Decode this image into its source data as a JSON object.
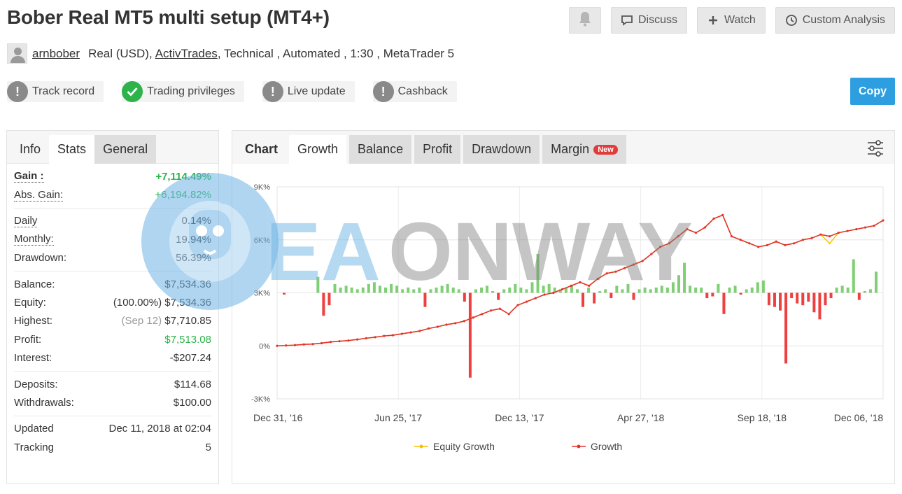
{
  "header": {
    "title": "Bober Real MT5 multi setup (MT4+)",
    "discuss_label": "Discuss",
    "watch_label": "Watch",
    "custom_analysis_label": "Custom Analysis"
  },
  "owner": {
    "username": "arnbober",
    "account_type": "Real (USD),",
    "broker": "ActivTrades",
    "details": ", Technical , Automated , 1:30 , MetaTrader 5"
  },
  "badges": [
    {
      "label": "Track record",
      "status": "warning"
    },
    {
      "label": "Trading privileges",
      "status": "ok"
    },
    {
      "label": "Live update",
      "status": "warning"
    },
    {
      "label": "Cashback",
      "status": "warning"
    }
  ],
  "copy_label": "Copy",
  "stats_tabs": [
    "Info",
    "Stats",
    "General"
  ],
  "stats": {
    "gain_label": "Gain :",
    "gain": "+7,114.49%",
    "abs_gain_label": "Abs. Gain:",
    "abs_gain": "+6,194.82%",
    "daily_label": "Daily",
    "daily": "0.14%",
    "monthly_label": "Monthly:",
    "monthly": "19.94%",
    "drawdown_label": "Drawdown:",
    "drawdown": "56.39%",
    "balance_label": "Balance:",
    "balance": "$7,534.36",
    "equity_label": "Equity:",
    "equity_pct": "(100.00%)",
    "equity": "$7,534.36",
    "highest_label": "Highest:",
    "highest_date": "(Sep 12)",
    "highest": "$7,710.85",
    "profit_label": "Profit:",
    "profit": "$7,513.08",
    "interest_label": "Interest:",
    "interest": "-$207.24",
    "deposits_label": "Deposits:",
    "deposits": "$114.68",
    "withdrawals_label": "Withdrawals:",
    "withdrawals": "$100.00",
    "updated_label": "Updated",
    "updated": "Dec 11, 2018 at 02:04",
    "tracking_label": "Tracking",
    "tracking": "5"
  },
  "chart_tabs": {
    "label": "Chart",
    "items": [
      "Growth",
      "Balance",
      "Profit",
      "Drawdown",
      "Margin"
    ],
    "new_badge": "New"
  },
  "watermark": "EAONWAY",
  "colors": {
    "growth": "#e0352b",
    "equity": "#f5c000",
    "bar_pos": "#7fcf75",
    "bar_neg": "#ee4040",
    "accent": "#2d9ee0",
    "gain_green": "#2db34a"
  },
  "chart_data": {
    "type": "line",
    "yticks": [
      "9K%",
      "6K%",
      "3K%",
      "0%",
      "-3K%"
    ],
    "ylim": [
      -3000,
      9000
    ],
    "xticks": [
      "Dec 31, '16",
      "Jun 25, '17",
      "Dec 13, '17",
      "Apr 27, '18",
      "Sep 18, '18",
      "Dec 06, '18"
    ],
    "series": [
      {
        "name": "Equity Growth",
        "color": "#f5c000",
        "values": [
          0,
          20,
          40,
          80,
          100,
          150,
          220,
          260,
          300,
          360,
          430,
          490,
          560,
          600,
          680,
          760,
          840,
          980,
          1080,
          1200,
          1280,
          1400,
          1600,
          1800,
          2000,
          2100,
          1800,
          2300,
          2500,
          2700,
          2900,
          3000,
          3200,
          3400,
          3600,
          3400,
          3800,
          4100,
          4200,
          4400,
          4600,
          4800,
          5200,
          5600,
          5800,
          6200,
          6600,
          6400,
          6700,
          7200,
          7400,
          6200,
          6000,
          5800,
          5600,
          5700,
          5900,
          5700,
          5800,
          6000,
          6100,
          6300,
          5800,
          6400,
          6500,
          6600,
          6700,
          6800,
          7100
        ]
      },
      {
        "name": "Growth",
        "color": "#e0352b",
        "values": [
          0,
          20,
          40,
          80,
          100,
          150,
          220,
          260,
          300,
          360,
          430,
          490,
          560,
          600,
          680,
          760,
          840,
          980,
          1080,
          1200,
          1280,
          1400,
          1600,
          1800,
          2000,
          2100,
          1800,
          2300,
          2500,
          2700,
          2900,
          3000,
          3200,
          3400,
          3600,
          3400,
          3800,
          4100,
          4200,
          4400,
          4600,
          4800,
          5200,
          5600,
          5800,
          6200,
          6600,
          6400,
          6700,
          7200,
          7400,
          6200,
          6000,
          5800,
          5600,
          5700,
          5900,
          5700,
          5800,
          6000,
          6100,
          6300,
          6200,
          6400,
          6500,
          6600,
          6700,
          6800,
          7100
        ]
      }
    ],
    "bars": [
      -100,
      0,
      0,
      0,
      0,
      0,
      0,
      0,
      0,
      0,
      1200,
      -1200,
      -700,
      0,
      0,
      0,
      0,
      0,
      0,
      0,
      0,
      0,
      0,
      0,
      0,
      0,
      0,
      0,
      0,
      0,
      0,
      0,
      0,
      0,
      0,
      0,
      0,
      0,
      0,
      0,
      0,
      0,
      0,
      0,
      0,
      0,
      0,
      0,
      0,
      0,
      0,
      0,
      0,
      0,
      0,
      0,
      0,
      0,
      0,
      0,
      0,
      0,
      0,
      0,
      0,
      0,
      0,
      0,
      0,
      0,
      0,
      0,
      0,
      0,
      0,
      0,
      0,
      0,
      0,
      0,
      0,
      0,
      0,
      0,
      0,
      0,
      0,
      0,
      0,
      0,
      0,
      0,
      0,
      0,
      0,
      0,
      0,
      0,
      0
    ]
  },
  "legend": [
    {
      "label": "Equity Growth",
      "color": "#f5c000"
    },
    {
      "label": "Growth",
      "color": "#e0352b"
    }
  ]
}
